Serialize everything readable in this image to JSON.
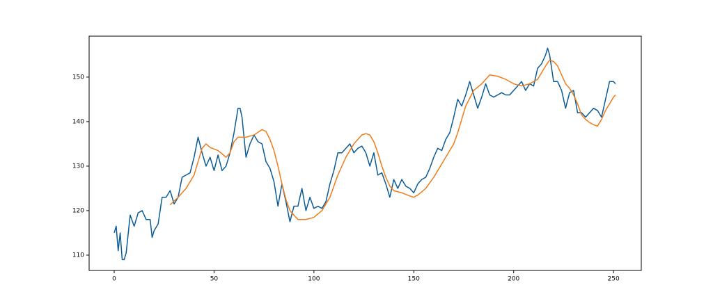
{
  "chart_data": {
    "type": "line",
    "xlim": [
      -12.55,
      263.9
    ],
    "ylim": [
      106.56,
      159.2
    ],
    "xticks": [
      0,
      50,
      100,
      150,
      200,
      250
    ],
    "yticks": [
      110,
      120,
      130,
      140,
      150
    ],
    "grid": false,
    "series": [
      {
        "color": "#0b5b96",
        "x": [
          0,
          1,
          2,
          3,
          4,
          5,
          6,
          8,
          10,
          12,
          14,
          16,
          18,
          19,
          20,
          22,
          24,
          26,
          28,
          30,
          32,
          34,
          36,
          38,
          40,
          42,
          44,
          46,
          48,
          50,
          52,
          54,
          56,
          58,
          60,
          62,
          63,
          64,
          66,
          68,
          70,
          72,
          74,
          76,
          78,
          80,
          82,
          84,
          86,
          88,
          90,
          92,
          94,
          96,
          98,
          100,
          102,
          104,
          106,
          108,
          110,
          112,
          114,
          116,
          118,
          120,
          122,
          124,
          126,
          128,
          130,
          132,
          134,
          136,
          138,
          140,
          142,
          144,
          146,
          148,
          150,
          152,
          154,
          156,
          158,
          160,
          162,
          164,
          166,
          168,
          170,
          172,
          174,
          176,
          178,
          180,
          182,
          184,
          186,
          188,
          190,
          192,
          194,
          196,
          198,
          200,
          202,
          204,
          206,
          208,
          210,
          212,
          214,
          216,
          217,
          218,
          220,
          222,
          224,
          226,
          228,
          230,
          232,
          234,
          236,
          238,
          240,
          242,
          244,
          246,
          248,
          250,
          251
        ],
        "values": [
          115,
          116.5,
          111,
          115,
          109,
          109,
          110.5,
          119,
          116.5,
          119.5,
          120,
          118,
          118,
          114,
          115.5,
          117,
          123,
          123,
          124.5,
          121.5,
          123,
          127.5,
          128,
          128.5,
          132,
          136.5,
          133,
          130,
          132,
          129,
          132.5,
          129,
          130,
          133,
          137.5,
          143,
          143,
          141,
          132,
          135,
          137,
          135.5,
          135,
          131,
          129.5,
          126.5,
          121,
          126,
          122,
          117.5,
          121,
          121,
          125,
          120,
          123,
          120.5,
          121,
          120.5,
          122,
          126,
          129,
          133,
          133,
          134,
          135,
          133,
          134,
          134.5,
          133,
          130,
          133,
          128,
          128.5,
          126,
          123,
          127,
          125,
          127,
          125.5,
          125,
          124,
          126,
          127,
          127.5,
          129.5,
          132,
          134,
          133.5,
          136,
          137.5,
          141,
          145,
          143.5,
          146,
          149,
          146,
          143,
          145.5,
          148.5,
          146,
          145.5,
          146,
          146.5,
          146,
          146,
          147,
          148,
          149,
          147,
          148.5,
          148,
          152,
          153,
          155,
          156.5,
          155,
          149,
          149,
          147,
          143,
          146.5,
          147,
          142,
          142,
          141,
          142,
          143,
          142.5,
          141,
          145,
          149,
          149,
          148.5
        ]
      },
      {
        "color": "#ef7b1a",
        "x": [
          28,
          32,
          36,
          40,
          44,
          46,
          48,
          52,
          56,
          58,
          60,
          62,
          66,
          70,
          74,
          76,
          78,
          80,
          82,
          84,
          86,
          88,
          90,
          92,
          96,
          100,
          104,
          108,
          112,
          116,
          120,
          124,
          126,
          128,
          130,
          132,
          134,
          136,
          138,
          140,
          144,
          148,
          150,
          152,
          156,
          160,
          164,
          168,
          170,
          172,
          174,
          176,
          180,
          184,
          188,
          192,
          196,
          200,
          204,
          208,
          212,
          216,
          218,
          220,
          222,
          224,
          226,
          228,
          230,
          232,
          234,
          236,
          238,
          240,
          242,
          244,
          246,
          248,
          250,
          251
        ],
        "values": [
          121.3,
          123,
          125,
          128,
          134,
          135,
          134.2,
          133.5,
          132,
          133,
          135.5,
          136.5,
          136.5,
          137,
          138.2,
          137.8,
          136,
          133.5,
          130,
          126,
          122.5,
          120,
          119,
          118,
          118,
          118.5,
          120,
          123,
          128,
          132,
          135,
          137,
          137.3,
          137,
          135.5,
          133,
          130,
          127.5,
          125.5,
          124.5,
          124,
          123.3,
          123,
          123.5,
          125,
          127.5,
          130.5,
          133.5,
          135,
          137.5,
          140.5,
          143.5,
          147,
          148.5,
          150.5,
          150.2,
          149.5,
          148.5,
          148,
          148.5,
          149.5,
          152.5,
          153.8,
          153.5,
          152.5,
          150.5,
          148.5,
          147.5,
          146,
          144,
          141.5,
          140.5,
          139.8,
          139.3,
          139,
          140.5,
          142.5,
          144,
          145.5,
          146
        ]
      }
    ]
  }
}
